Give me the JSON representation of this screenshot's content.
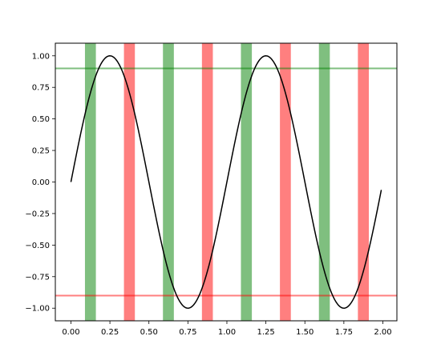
{
  "chart_data": {
    "type": "line",
    "title": "",
    "xlabel": "",
    "ylabel": "",
    "xlim": [
      -0.1,
      2.09
    ],
    "ylim": [
      -1.1,
      1.1
    ],
    "x_ticks": [
      {
        "value": 0.0,
        "label": "0.00"
      },
      {
        "value": 0.25,
        "label": "0.25"
      },
      {
        "value": 0.5,
        "label": "0.50"
      },
      {
        "value": 0.75,
        "label": "0.75"
      },
      {
        "value": 1.0,
        "label": "1.00"
      },
      {
        "value": 1.25,
        "label": "1.25"
      },
      {
        "value": 1.5,
        "label": "1.50"
      },
      {
        "value": 1.75,
        "label": "1.75"
      },
      {
        "value": 2.0,
        "label": "2.00"
      }
    ],
    "y_ticks": [
      {
        "value": 1.0,
        "label": "1.00"
      },
      {
        "value": 0.75,
        "label": "0.75"
      },
      {
        "value": 0.5,
        "label": "0.50"
      },
      {
        "value": 0.25,
        "label": "0.25"
      },
      {
        "value": 0.0,
        "label": "0.00"
      },
      {
        "value": -0.25,
        "label": "−0.25"
      },
      {
        "value": -0.5,
        "label": "−0.50"
      },
      {
        "value": -0.75,
        "label": "−0.75"
      },
      {
        "value": -1.0,
        "label": "−1.00"
      }
    ],
    "grid": false,
    "series": [
      {
        "function": "sin(2*pi*x)",
        "x_range": [
          0.0,
          1.99
        ],
        "color": "#000000"
      }
    ],
    "horizontal_lines": [
      {
        "y": 0.9,
        "color": "#008000",
        "alpha": 0.5
      },
      {
        "y": -0.9,
        "color": "#ff0000",
        "alpha": 0.5
      }
    ],
    "vertical_spans": [
      {
        "x0": 0.09,
        "x1": 0.16,
        "color": "#008000",
        "alpha": 0.5
      },
      {
        "x0": 0.59,
        "x1": 0.66,
        "color": "#008000",
        "alpha": 0.5
      },
      {
        "x0": 1.09,
        "x1": 1.16,
        "color": "#008000",
        "alpha": 0.5
      },
      {
        "x0": 1.59,
        "x1": 1.66,
        "color": "#008000",
        "alpha": 0.5
      },
      {
        "x0": 0.34,
        "x1": 0.41,
        "color": "#ff0000",
        "alpha": 0.5
      },
      {
        "x0": 0.84,
        "x1": 0.91,
        "color": "#ff0000",
        "alpha": 0.5
      },
      {
        "x0": 1.34,
        "x1": 1.41,
        "color": "#ff0000",
        "alpha": 0.5
      },
      {
        "x0": 1.84,
        "x1": 1.91,
        "color": "#ff0000",
        "alpha": 0.5
      }
    ]
  }
}
